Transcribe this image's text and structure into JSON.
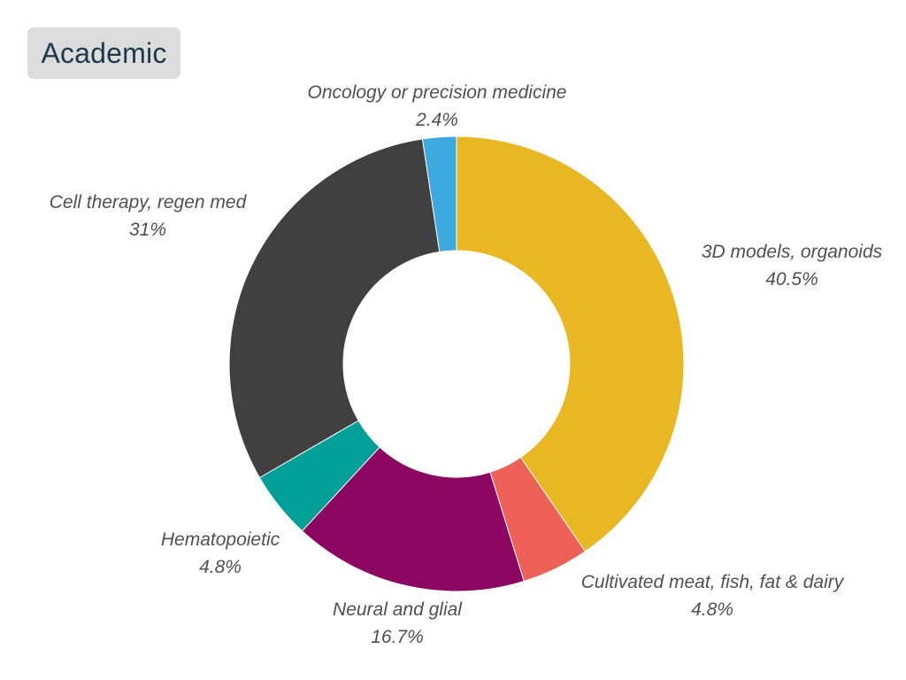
{
  "badge": {
    "label": "Academic"
  },
  "chart_data": {
    "type": "pie",
    "variant": "donut",
    "title": "",
    "unit": "%",
    "slices": [
      {
        "label": "3D models, organoids",
        "value": 40.5,
        "display": "40.5%",
        "color": "#e8b722"
      },
      {
        "label": "Cultivated meat, fish, fat & dairy",
        "value": 4.8,
        "display": "4.8%",
        "color": "#ee6158"
      },
      {
        "label": "Neural and glial",
        "value": 16.7,
        "display": "16.7%",
        "color": "#8b0762"
      },
      {
        "label": "Hematopoietic",
        "value": 4.8,
        "display": "4.8%",
        "color": "#009f98"
      },
      {
        "label": "Cell therapy, regen med",
        "value": 31,
        "display": "31%",
        "color": "#404040"
      },
      {
        "label": "Oncology or precision medicine",
        "value": 2.4,
        "display": "2.4%",
        "color": "#3daadf"
      }
    ]
  }
}
